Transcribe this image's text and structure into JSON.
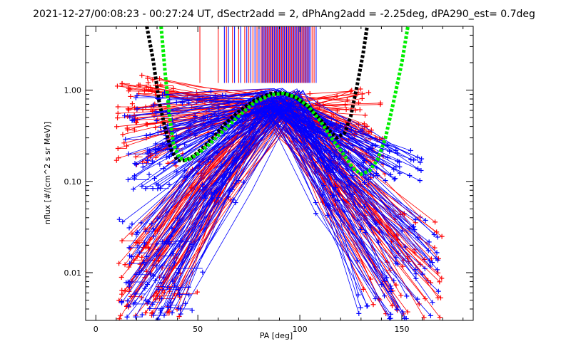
{
  "chart_data": {
    "type": "line",
    "title": "2021-12-27/00:08:23 - 00:27:24 UT, dSectr2add = 2, dPhAng2add = -2.25deg, dPA290_est=   0.7deg",
    "xlabel": "PA [deg]",
    "ylabel": "nflux [#/(cm^2 s sr MeV)]",
    "xlim": [
      -5,
      185
    ],
    "ylim": [
      0.003,
      5.0
    ],
    "y_scale": "log",
    "x_ticks": [
      0,
      50,
      100,
      150
    ],
    "x_tick_labels": [
      "0",
      "50",
      "100",
      "150"
    ],
    "y_ticks": [
      0.01,
      0.1,
      1.0
    ],
    "y_tick_labels": [
      "0.01",
      "0.10",
      "1.00"
    ],
    "grid": false,
    "legend": "none",
    "colors": {
      "series_red": "#ff0000",
      "series_blue": "#0000ff",
      "fit_black": "#000000",
      "fit_green": "#00ee00"
    },
    "fit_curves": [
      {
        "color": "#000000",
        "style": "dashed-thick",
        "points": [
          [
            25,
            5.0
          ],
          [
            28,
            2.2
          ],
          [
            31,
            0.75
          ],
          [
            34,
            0.38
          ],
          [
            37,
            0.22
          ],
          [
            40,
            0.17
          ],
          [
            44,
            0.17
          ],
          [
            48,
            0.19
          ],
          [
            53,
            0.24
          ],
          [
            58,
            0.31
          ],
          [
            63,
            0.42
          ],
          [
            70,
            0.58
          ],
          [
            78,
            0.78
          ],
          [
            86,
            0.92
          ],
          [
            92,
            0.93
          ],
          [
            98,
            0.83
          ],
          [
            104,
            0.66
          ],
          [
            110,
            0.48
          ],
          [
            114,
            0.37
          ],
          [
            118,
            0.3
          ],
          [
            122,
            0.34
          ],
          [
            125,
            0.52
          ],
          [
            128,
            1.1
          ],
          [
            131,
            2.5
          ],
          [
            133,
            5.0
          ]
        ]
      },
      {
        "color": "#00ee00",
        "style": "dashed-thick",
        "points": [
          [
            32,
            5.0
          ],
          [
            34,
            1.5
          ],
          [
            36,
            0.55
          ],
          [
            38,
            0.26
          ],
          [
            41,
            0.18
          ],
          [
            45,
            0.17
          ],
          [
            50,
            0.2
          ],
          [
            56,
            0.26
          ],
          [
            62,
            0.35
          ],
          [
            70,
            0.52
          ],
          [
            78,
            0.74
          ],
          [
            86,
            0.89
          ],
          [
            92,
            0.92
          ],
          [
            98,
            0.84
          ],
          [
            104,
            0.67
          ],
          [
            110,
            0.46
          ],
          [
            116,
            0.29
          ],
          [
            122,
            0.19
          ],
          [
            126,
            0.14
          ],
          [
            130,
            0.12
          ],
          [
            134,
            0.13
          ],
          [
            138,
            0.17
          ],
          [
            142,
            0.3
          ],
          [
            146,
            0.75
          ],
          [
            150,
            2.0
          ],
          [
            153,
            5.0
          ]
        ]
      }
    ],
    "vertical_lines": {
      "y_top": 5.0,
      "y_bottom": 1.2,
      "red_x": [
        51,
        60,
        64,
        67,
        70,
        73,
        75,
        77,
        79,
        81,
        82,
        83,
        84,
        85,
        86,
        87,
        88,
        89,
        90,
        91,
        92,
        93,
        94,
        95,
        96,
        97,
        98,
        99,
        100,
        101,
        102,
        103,
        104,
        106,
        107
      ],
      "blue_x": [
        63,
        65,
        68,
        71,
        74,
        76,
        78,
        80,
        81.5,
        82.5,
        83.5,
        84.5,
        85.5,
        86.5,
        87.5,
        88.5,
        89.5,
        90.5,
        91.5,
        92.5,
        93.5,
        94.5,
        95.5,
        96.5,
        97.5,
        98.5,
        99.5,
        100.5,
        101.5,
        102.5,
        103.5,
        104.5,
        105,
        108
      ]
    },
    "point_families": [
      {
        "color": "#ff0000",
        "left_x": [
          10,
          36
        ],
        "left_y": [
          0.14,
          1.5
        ],
        "peak_x": [
          76,
          98
        ],
        "peak_y": [
          0.55,
          1.05
        ],
        "right_x": [
          118,
          142
        ],
        "right_y": [
          0.12,
          1.1
        ]
      },
      {
        "color": "#ff0000",
        "left_x": [
          11,
          42
        ],
        "left_y": [
          0.003,
          0.03
        ],
        "peak_x": [
          78,
          100
        ],
        "peak_y": [
          0.5,
          1.0
        ],
        "right_x": [
          130,
          170
        ],
        "right_y": [
          0.003,
          0.045
        ]
      },
      {
        "color": "#0000ff",
        "left_x": [
          13,
          40
        ],
        "left_y": [
          0.08,
          0.95
        ],
        "peak_x": [
          80,
          100
        ],
        "peak_y": [
          0.6,
          1.05
        ],
        "right_x": [
          110,
          160
        ],
        "right_y": [
          0.1,
          0.25
        ]
      },
      {
        "color": "#0000ff",
        "left_x": [
          12,
          42
        ],
        "left_y": [
          0.003,
          0.04
        ],
        "peak_x": [
          80,
          102
        ],
        "peak_y": [
          0.55,
          1.0
        ],
        "right_x": [
          128,
          168
        ],
        "right_y": [
          0.003,
          0.04
        ]
      }
    ]
  }
}
